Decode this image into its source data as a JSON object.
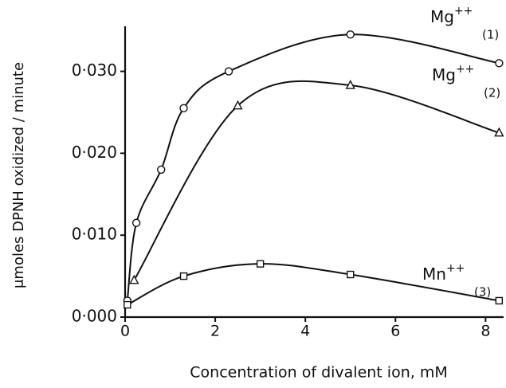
{
  "chart_data": {
    "type": "line",
    "xlabel": "Concentration of divalent ion, mM",
    "ylabel": "μmoles DPNH oxidized / minute",
    "xlim": [
      0,
      8.4
    ],
    "ylim": [
      0,
      0.0355
    ],
    "xticks": [
      0,
      2,
      4,
      6,
      8
    ],
    "yticks": [
      {
        "value": 0,
        "label": "0·000"
      },
      {
        "value": 0.01,
        "label": "0·010"
      },
      {
        "value": 0.02,
        "label": "0·020"
      },
      {
        "value": 0.03,
        "label": "0·030"
      }
    ],
    "series": [
      {
        "name": "Mg",
        "charge": "++",
        "number": "(1)",
        "marker": "circle",
        "color": "#111",
        "x": [
          0.05,
          0.25,
          0.8,
          1.3,
          2.3,
          5.0,
          8.3
        ],
        "values": [
          0.002,
          0.0115,
          0.018,
          0.0255,
          0.03,
          0.0345,
          0.031
        ]
      },
      {
        "name": "Mg",
        "charge": "++",
        "number": "(2)",
        "marker": "triangle",
        "color": "#111",
        "x": [
          0.2,
          2.5,
          5.0,
          8.3
        ],
        "values": [
          0.0045,
          0.0258,
          0.0283,
          0.0225
        ]
      },
      {
        "name": "Mn",
        "charge": "++",
        "number": "(3)",
        "marker": "square",
        "color": "#111",
        "x": [
          0.05,
          1.3,
          3.0,
          5.0,
          8.3
        ],
        "values": [
          0.0015,
          0.005,
          0.0065,
          0.0052,
          0.002
        ]
      }
    ]
  }
}
